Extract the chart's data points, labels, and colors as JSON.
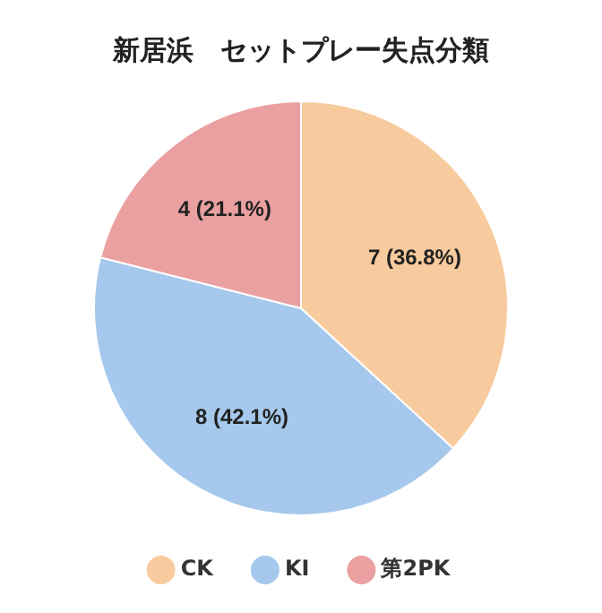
{
  "chart_data": {
    "type": "pie",
    "title": "新居浜　セットプレー失点分類",
    "categories": [
      "CK",
      "KI",
      "第2PK"
    ],
    "values": [
      7,
      8,
      4
    ],
    "colors": [
      "#f8cb9e",
      "#a5c8ec",
      "#eaa0a0"
    ],
    "value_labels": [
      "7 (36.8%)",
      "8 (42.1%)",
      "4 (21.1%)"
    ],
    "legend": "bottom"
  }
}
